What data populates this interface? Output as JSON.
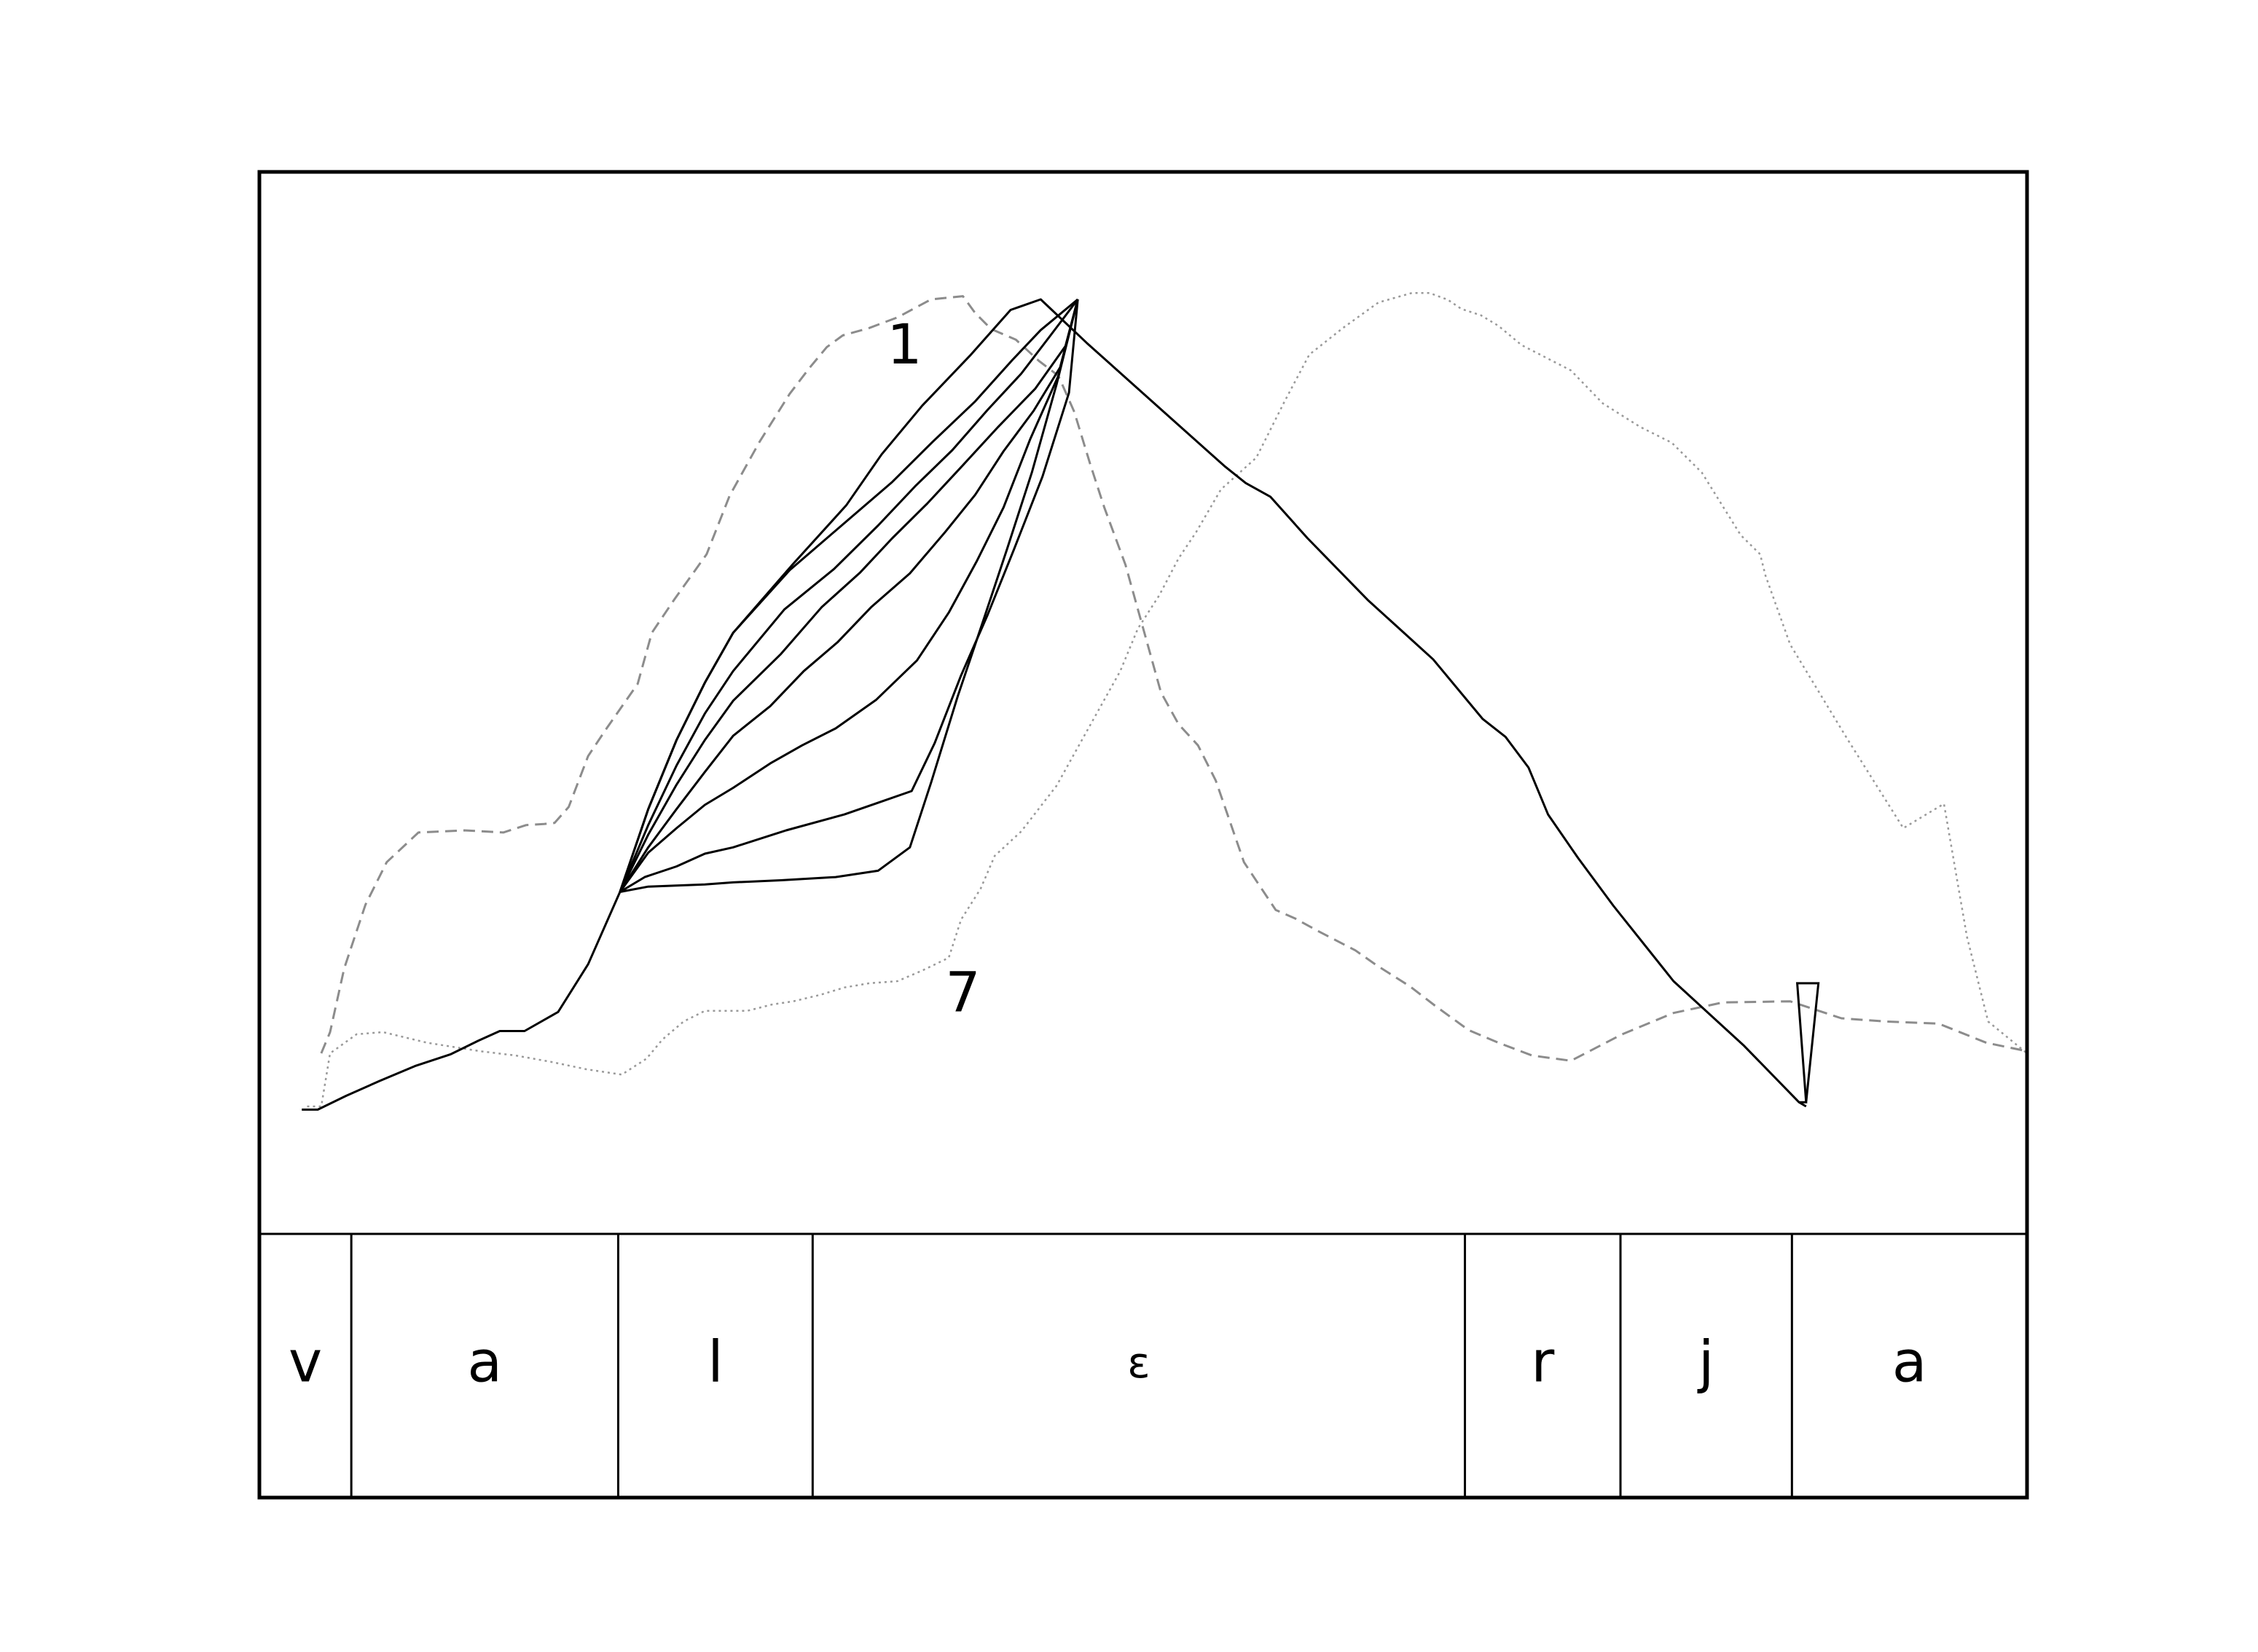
{
  "chart_data": {
    "type": "line",
    "title": "",
    "xlabel": "",
    "ylabel": "",
    "xlim": [
      0,
      1000
    ],
    "ylim": [
      0,
      1000
    ],
    "grid": false,
    "legend": "none",
    "annotations": [
      {
        "text": "1",
        "x": 365,
        "y": 834
      },
      {
        "text": "7",
        "x": 398,
        "y": 224
      }
    ],
    "segments": [
      {
        "label": "v",
        "start": 0,
        "end": 52
      },
      {
        "label": "a",
        "start": 52,
        "end": 203
      },
      {
        "label": "l",
        "start": 203,
        "end": 313
      },
      {
        "label": "ε",
        "start": 313,
        "end": 682
      },
      {
        "label": "r",
        "start": 682,
        "end": 770
      },
      {
        "label": "j",
        "start": 770,
        "end": 867
      },
      {
        "label": "a",
        "start": 867,
        "end": 1000
      }
    ],
    "series": [
      {
        "style": "dashed",
        "color": "#8c8c8c",
        "x": [
          35,
          40,
          48,
          60,
          72,
          90,
          116,
          138,
          151,
          161,
          167,
          175,
          186,
          196,
          214,
          222,
          235,
          253,
          266,
          283,
          300,
          311,
          321,
          330,
          345,
          361,
          380,
          398,
          405,
          414,
          428,
          441,
          452,
          461,
          470,
          478,
          490,
          500,
          510,
          520,
          531,
          541,
          557,
          575,
          586,
          598,
          620,
          632,
          651,
          665,
          684,
          701,
          720,
          742,
          771,
          800,
          828,
          866,
          895,
          920,
          950,
          977,
          1000
        ],
        "y": [
          170,
          190,
          250,
          310,
          350,
          378,
          380,
          378,
          385,
          386,
          387,
          402,
          450,
          475,
          518,
          566,
          598,
          640,
          695,
          746,
          791,
          815,
          835,
          846,
          853,
          863,
          880,
          883,
          867,
          852,
          842,
          822,
          808,
          774,
          725,
          684,
          630,
          570,
          510,
          480,
          460,
          427,
          350,
          305,
          297,
          286,
          267,
          253,
          233,
          215,
          192,
          180,
          168,
          163,
          188,
          208,
          218,
          219,
          203,
          200,
          198,
          180,
          172
        ]
      },
      {
        "style": "dotted",
        "color": "#999999",
        "x": [
          27,
          35,
          40,
          55,
          70,
          95,
          125,
          145,
          165,
          185,
          205,
          219,
          228,
          240,
          252,
          276,
          290,
          302,
          317,
          331,
          345,
          361,
          375,
          390,
          397,
          408,
          416,
          431,
          451,
          467,
          487,
          497,
          509,
          520,
          530,
          544,
          564,
          580,
          594,
          613,
          633,
          652,
          662,
          670,
          672,
          680,
          691,
          701,
          714,
          742,
          760,
          781,
          799,
          816,
          838,
          849,
          852,
          866,
          898,
          930,
          953,
          966,
          978,
          1000
        ],
        "y": [
          120,
          120,
          170,
          188,
          190,
          180,
          172,
          168,
          162,
          155,
          150,
          165,
          183,
          200,
          210,
          210,
          216,
          219,
          225,
          232,
          236,
          238,
          248,
          260,
          296,
          325,
          356,
          379,
          422,
          470,
          530,
          570,
          601,
          636,
          661,
          701,
          731,
          784,
          828,
          853,
          877,
          886,
          886,
          881,
          880,
          871,
          865,
          855,
          837,
          813,
          782,
          760,
          745,
          717,
          658,
          640,
          620,
          555,
          467,
          382,
          405,
          280,
          200,
          170
        ]
      },
      {
        "style": "solid",
        "color": "#000000",
        "x": [
          24,
          33,
          49,
          68,
          88,
          108,
          124,
          136,
          150,
          169,
          186,
          204,
          220,
          236,
          252,
          268,
          302,
          332,
          352,
          375,
          402,
          425,
          442,
          468,
          515,
          546,
          558,
          572,
          593,
          627,
          664,
          692,
          705,
          718,
          729,
          746,
          766,
          800,
          840,
          871,
          875
        ],
        "y": [
          117,
          117,
          130,
          144,
          158,
          169,
          182,
          191,
          191,
          209,
          254,
          322,
          400,
          465,
          519,
          566,
          631,
          686,
          734,
          780,
          827,
          870,
          880,
          839,
          769,
          723,
          707,
          694,
          655,
          597,
          541,
          485,
          468,
          439,
          395,
          354,
          309,
          238,
          177,
          124,
          120
        ],
        "bracket_x": [
          871,
          875,
          870,
          882,
          882,
          875
        ],
        "bracket_y": [
          124,
          124,
          236,
          236,
          236,
          124
        ]
      },
      {
        "style": "solid",
        "color": "#000000",
        "x": [
          204,
          220,
          236,
          252,
          268,
          300,
          330,
          358,
          381,
          405,
          426,
          442,
          463
        ],
        "y": [
          322,
          400,
          465,
          519,
          566,
          625,
          668,
          708,
          746,
          784,
          823,
          851,
          880
        ]
      },
      {
        "style": "solid",
        "color": "#000000",
        "x": [
          204,
          220,
          236,
          252,
          268,
          297,
          325,
          350,
          371,
          392,
          412,
          431,
          448,
          463
        ],
        "y": [
          322,
          385,
          441,
          490,
          530,
          588,
          626,
          667,
          704,
          738,
          776,
          810,
          847,
          880
        ]
      },
      {
        "style": "solid",
        "color": "#000000",
        "x": [
          204,
          220,
          236,
          252,
          268,
          295,
          318,
          340,
          358,
          378,
          397,
          418,
          439,
          456,
          463
        ],
        "y": [
          322,
          376,
          423,
          465,
          502,
          546,
          590,
          623,
          655,
          688,
          722,
          760,
          796,
          836,
          880
        ]
      },
      {
        "style": "solid",
        "color": "#000000",
        "x": [
          204,
          220,
          236,
          252,
          268,
          289,
          308,
          327,
          346,
          368,
          388,
          405,
          421,
          438,
          453,
          463
        ],
        "y": [
          322,
          364,
          400,
          435,
          469,
          497,
          530,
          557,
          590,
          622,
          661,
          696,
          737,
          775,
          816,
          880
        ]
      },
      {
        "style": "solid",
        "color": "#000000",
        "x": [
          204,
          220,
          236,
          252,
          268,
          289,
          307,
          326,
          349,
          372,
          390,
          406,
          421,
          436,
          452,
          463
        ],
        "y": [
          322,
          359,
          382,
          404,
          420,
          443,
          460,
          476,
          503,
          540,
          585,
          634,
          684,
          748,
          808,
          880
        ]
      },
      {
        "style": "solid",
        "color": "#000000",
        "x": [
          204,
          218,
          236,
          252,
          268,
          298,
          331,
          350,
          369,
          382,
          397,
          412,
          427,
          443,
          458,
          463
        ],
        "y": [
          322,
          336,
          346,
          358,
          364,
          380,
          395,
          406,
          417,
          462,
          526,
          583,
          645,
          713,
          792,
          880
        ]
      },
      {
        "style": "solid",
        "color": "#000000",
        "x": [
          204,
          220,
          236,
          252,
          268,
          295,
          326,
          350,
          368,
          380,
          395,
          410,
          423,
          437,
          451,
          463
        ],
        "y": [
          322,
          327,
          328,
          329,
          331,
          333,
          336,
          342,
          364,
          425,
          506,
          580,
          645,
          717,
          800,
          880
        ]
      }
    ]
  }
}
